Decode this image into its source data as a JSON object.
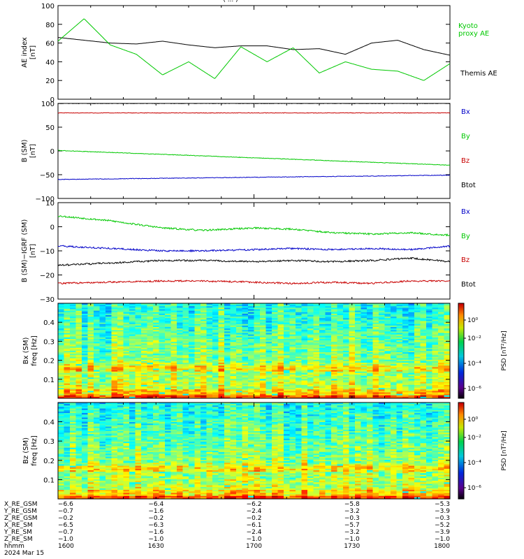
{
  "title_fragment": "( ... )",
  "chart_data": [
    {
      "type": "line",
      "ylabel": "AE index",
      "ylabel_units": "[nT]",
      "ylim": [
        0,
        100
      ],
      "yticks": [
        "0",
        "20",
        "40",
        "60",
        "80",
        "100"
      ],
      "x": [
        0,
        4,
        8,
        12,
        16,
        20,
        24,
        28,
        32,
        36,
        40,
        44,
        48,
        52,
        56,
        60
      ],
      "series": [
        {
          "name": "Themis AE",
          "color": "#000000",
          "values": [
            66,
            63,
            60,
            59,
            62,
            58,
            55,
            57,
            57,
            53,
            54,
            48,
            60,
            63,
            53,
            47
          ]
        },
        {
          "name": "Kyoto proxy AE",
          "color": "#00c800",
          "name_lines": [
            "Kyoto",
            "proxy AE"
          ],
          "values": [
            62,
            86,
            58,
            48,
            26,
            40,
            22,
            56,
            40,
            55,
            28,
            40,
            32,
            30,
            20,
            38
          ]
        }
      ]
    },
    {
      "type": "line",
      "ylabel": "B (SM)",
      "ylabel_units": "[nT]",
      "ylim": [
        -100,
        100
      ],
      "yticks": [
        "−100",
        "−50",
        "0",
        "50",
        "100"
      ],
      "x": [
        0,
        60
      ],
      "legend": [
        {
          "label": "Bx",
          "color": "#0000c8"
        },
        {
          "label": "By",
          "color": "#00c800"
        },
        {
          "label": "Bz",
          "color": "#c80000"
        },
        {
          "label": "Btot",
          "color": "#000000"
        }
      ],
      "series": [
        {
          "name": "Btot",
          "color": "#000000",
          "values": [
            100,
            100
          ]
        },
        {
          "name": "Bz",
          "color": "#c80000",
          "values": [
            80,
            80
          ]
        },
        {
          "name": "By",
          "color": "#00c800",
          "values": [
            1,
            -30
          ]
        },
        {
          "name": "Bx",
          "color": "#0000c8",
          "values": [
            -60,
            -51
          ]
        }
      ]
    },
    {
      "type": "line",
      "ylabel": "B (SM)−IGRF (SM)",
      "ylabel_units": "[nT]",
      "ylim": [
        -30,
        10
      ],
      "yticks": [
        "−30",
        "−20",
        "−10",
        "0",
        "10"
      ],
      "x": [
        0,
        8,
        16,
        22,
        30,
        36,
        42,
        48,
        54,
        60
      ],
      "legend": [
        {
          "label": "Bx",
          "color": "#0000c8"
        },
        {
          "label": "By",
          "color": "#00c800"
        },
        {
          "label": "Bz",
          "color": "#c80000"
        },
        {
          "label": "Btot",
          "color": "#000000"
        }
      ],
      "series": [
        {
          "name": "By",
          "color": "#00c800",
          "values": [
            4.5,
            2.5,
            -0.5,
            -1.5,
            -0.5,
            -1.0,
            -2.5,
            -3.0,
            -2.5,
            -3.5
          ]
        },
        {
          "name": "Bx",
          "color": "#0000c8",
          "values": [
            -8.0,
            -9.0,
            -10.0,
            -10.0,
            -9.5,
            -9.0,
            -9.5,
            -9.0,
            -9.5,
            -8.0
          ]
        },
        {
          "name": "Btot",
          "color": "#000000",
          "values": [
            -16.0,
            -15.0,
            -14.0,
            -14.0,
            -14.5,
            -14.0,
            -14.5,
            -14.0,
            -13.0,
            -14.5
          ]
        },
        {
          "name": "Bz",
          "color": "#c80000",
          "values": [
            -23.5,
            -23.0,
            -22.5,
            -22.5,
            -23.0,
            -23.5,
            -23.0,
            -23.5,
            -22.5,
            -22.5
          ]
        }
      ]
    },
    {
      "type": "heatmap",
      "ylabel": "Bx (SM)",
      "ylabel2": "freq [Hz]",
      "ylim": [
        0,
        0.5
      ],
      "yticks": [
        "0.1",
        "0.2",
        "0.3",
        "0.4"
      ],
      "colorbar_label": "PSD [nT²/Hz]",
      "colorbar_ticks": [
        "10⁰",
        "10⁻²",
        "10⁻⁴",
        "10⁻⁶"
      ],
      "seed": 7
    },
    {
      "type": "heatmap",
      "ylabel": "Bz (SM)",
      "ylabel2": "freq [Hz]",
      "ylim": [
        0,
        0.5
      ],
      "yticks": [
        "0.1",
        "0.2",
        "0.3",
        "0.4"
      ],
      "colorbar_label": "PSD [nT²/Hz]",
      "colorbar_ticks": [
        "10⁰",
        "10⁻²",
        "10⁻⁴",
        "10⁻⁶"
      ],
      "seed": 19
    }
  ],
  "x_axis": {
    "labels": [
      "X_RE_GSM",
      "Y_RE_GSM",
      "Z_RE_GSM",
      "X_RE_SM",
      "Y_RE_SM",
      "Z_RE_SM",
      "hhmm",
      "2024 Mar 15"
    ],
    "columns": [
      [
        "−6.6",
        "−0.7",
        "−0.2",
        "−6.5",
        "−0.7",
        "−1.0",
        "1600"
      ],
      [
        "−6.4",
        "−1.6",
        "−0.2",
        "−6.3",
        "−1.6",
        "−1.0",
        "1630"
      ],
      [
        "−6.2",
        "−2.4",
        "−0.2",
        "−6.1",
        "−2.4",
        "−1.0",
        "1700"
      ],
      [
        "−5.8",
        "−3.2",
        "−0.3",
        "−5.7",
        "−3.2",
        "−1.0",
        "1730"
      ],
      [
        "−5.3",
        "−3.9",
        "−0.3",
        "−5.2",
        "−3.9",
        "−1.0",
        "1800"
      ]
    ]
  }
}
